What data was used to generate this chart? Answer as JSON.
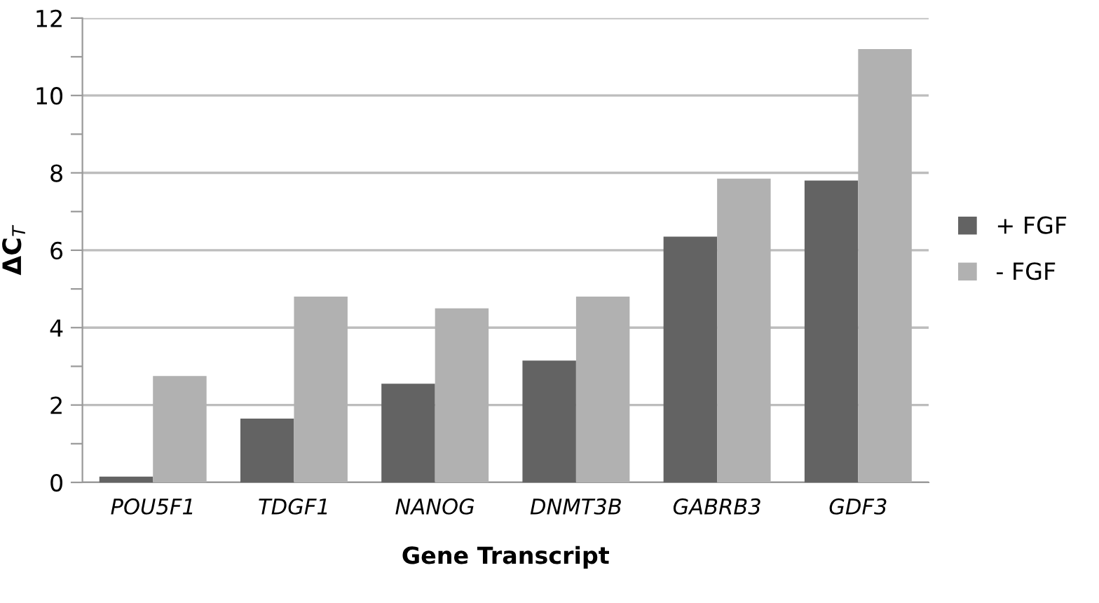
{
  "chart_data": {
    "type": "bar",
    "xlabel": "Gene Transcript",
    "ylabel": "ΔC$_{T}$",
    "categories": [
      "POU5F1",
      "TDGF1",
      "NANOG",
      "DNMT3B",
      "GABRB3",
      "GDF3"
    ],
    "series": [
      {
        "name": "+ FGF",
        "color": "#636363",
        "values": [
          0.15,
          1.65,
          2.55,
          3.15,
          6.35,
          7.8
        ]
      },
      {
        "name": "- FGF",
        "color": "#b1b1b1",
        "values": [
          2.75,
          4.8,
          4.5,
          4.8,
          7.85,
          11.2
        ]
      }
    ],
    "ylim": [
      0,
      12
    ],
    "yticks": [
      0,
      {
        "value": 1,
        "label": null
      },
      2,
      {
        "value": 3,
        "label": null
      },
      4,
      {
        "value": 5,
        "label": null
      },
      6,
      {
        "value": 7,
        "label": null
      },
      8,
      {
        "value": 9,
        "label": null
      },
      10,
      {
        "value": 11,
        "label": null
      },
      12
    ],
    "grid": "y",
    "legend": "right"
  }
}
